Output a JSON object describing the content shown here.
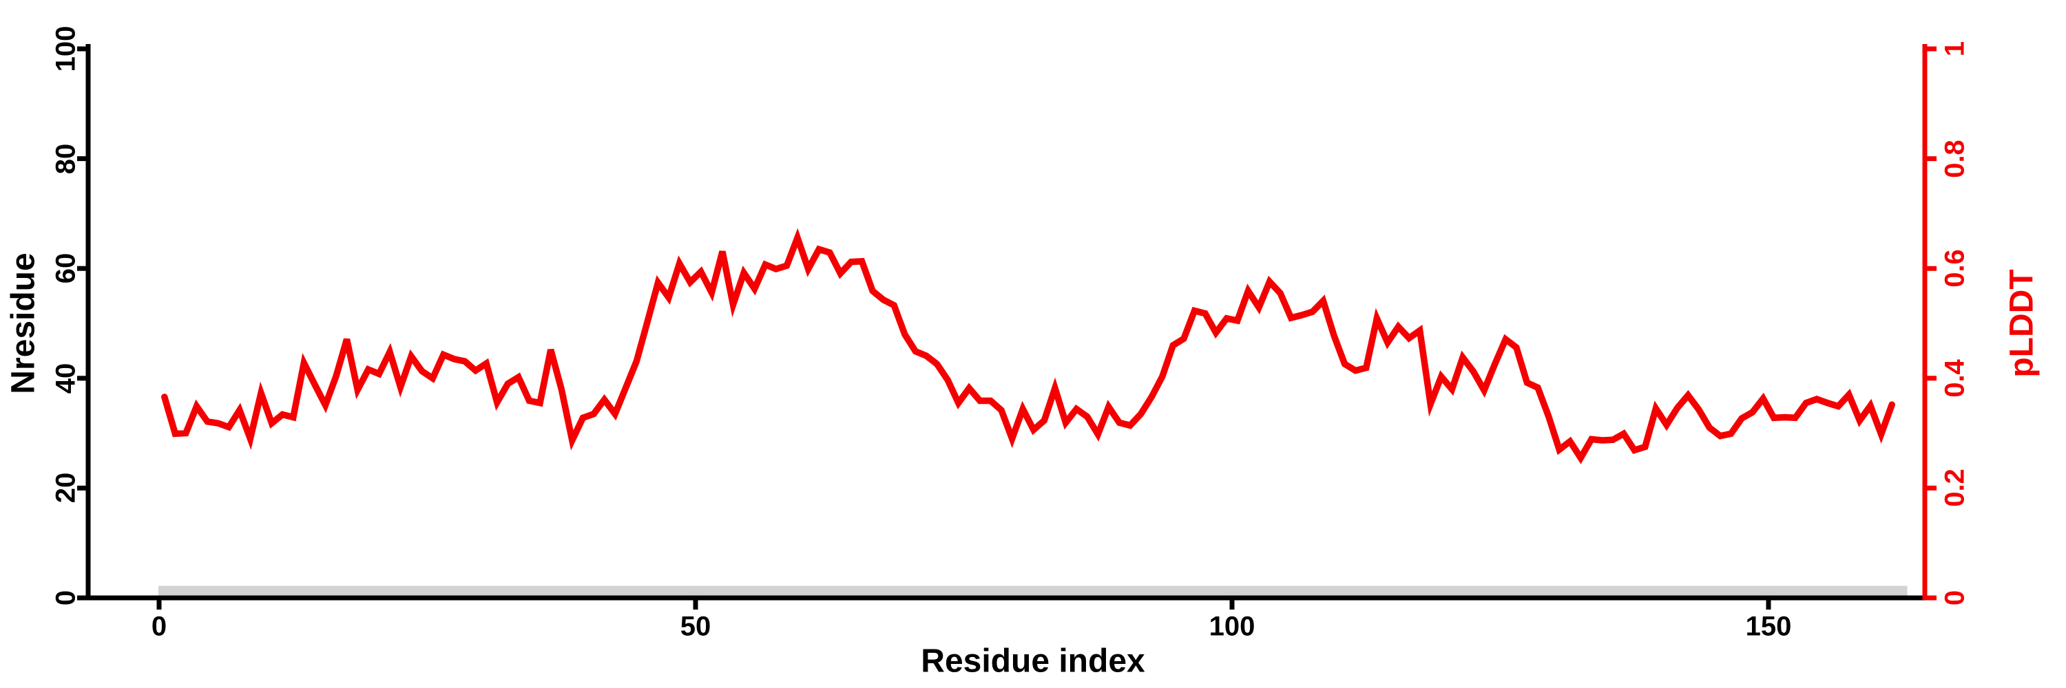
{
  "chart_data": {
    "type": "line",
    "title": "",
    "xlabel": "Residue index",
    "ylabel_left": "Nresidue",
    "ylabel_right": "pLDDT",
    "x_ticks": [
      "0",
      "50",
      "100",
      "150"
    ],
    "x_tick_values": [
      0,
      50,
      100,
      150
    ],
    "y_ticks_left": [
      "0",
      "20",
      "40",
      "60",
      "80",
      "100"
    ],
    "y_tick_values_left": [
      0,
      20,
      40,
      60,
      80,
      100
    ],
    "y_ticks_right": [
      "0",
      "0.2",
      "0.4",
      "0.6",
      "0.8",
      "1"
    ],
    "y_tick_values_right": [
      0,
      0.2,
      0.4,
      0.6,
      0.8,
      1
    ],
    "ylim_left": [
      0,
      100
    ],
    "ylim_right": [
      0,
      1
    ],
    "xlim": [
      -7,
      165
    ],
    "grid": false,
    "legend": "none",
    "line_color": "#f40000",
    "axis_color_left": "#000000",
    "axis_color_right": "#f40000",
    "series": [
      {
        "name": "pLDDT",
        "axis": "right",
        "color": "#f40000",
        "x_start": 1,
        "x_step": 1,
        "values": [
          0.366,
          0.299,
          0.3,
          0.349,
          0.321,
          0.318,
          0.311,
          0.342,
          0.29,
          0.373,
          0.318,
          0.334,
          0.329,
          0.428,
          0.389,
          0.351,
          0.404,
          0.471,
          0.379,
          0.416,
          0.408,
          0.448,
          0.384,
          0.44,
          0.413,
          0.4,
          0.443,
          0.435,
          0.431,
          0.414,
          0.427,
          0.356,
          0.39,
          0.402,
          0.359,
          0.355,
          0.452,
          0.38,
          0.287,
          0.328,
          0.335,
          0.361,
          0.335,
          0.383,
          0.431,
          0.502,
          0.574,
          0.547,
          0.609,
          0.575,
          0.594,
          0.556,
          0.631,
          0.534,
          0.592,
          0.563,
          0.607,
          0.599,
          0.605,
          0.656,
          0.599,
          0.635,
          0.629,
          0.591,
          0.612,
          0.613,
          0.559,
          0.543,
          0.533,
          0.48,
          0.449,
          0.441,
          0.426,
          0.397,
          0.355,
          0.382,
          0.359,
          0.359,
          0.342,
          0.29,
          0.344,
          0.306,
          0.323,
          0.382,
          0.319,
          0.344,
          0.33,
          0.298,
          0.348,
          0.319,
          0.314,
          0.335,
          0.366,
          0.403,
          0.46,
          0.472,
          0.523,
          0.518,
          0.483,
          0.509,
          0.505,
          0.559,
          0.529,
          0.576,
          0.555,
          0.51,
          0.515,
          0.521,
          0.541,
          0.478,
          0.426,
          0.414,
          0.419,
          0.509,
          0.465,
          0.494,
          0.473,
          0.487,
          0.353,
          0.403,
          0.38,
          0.438,
          0.412,
          0.378,
          0.426,
          0.471,
          0.456,
          0.392,
          0.383,
          0.331,
          0.27,
          0.285,
          0.255,
          0.289,
          0.287,
          0.288,
          0.299,
          0.269,
          0.275,
          0.345,
          0.315,
          0.346,
          0.369,
          0.343,
          0.31,
          0.295,
          0.299,
          0.327,
          0.338,
          0.363,
          0.328,
          0.329,
          0.328,
          0.355,
          0.362,
          0.355,
          0.349,
          0.37,
          0.323,
          0.35,
          0.298,
          0.352
        ]
      }
    ],
    "annotations": {
      "sequence_bar": {
        "x_start": 0,
        "x_end": 163,
        "color": "#d3d3d3",
        "description": "gray bar along baseline marking residue span"
      }
    }
  }
}
